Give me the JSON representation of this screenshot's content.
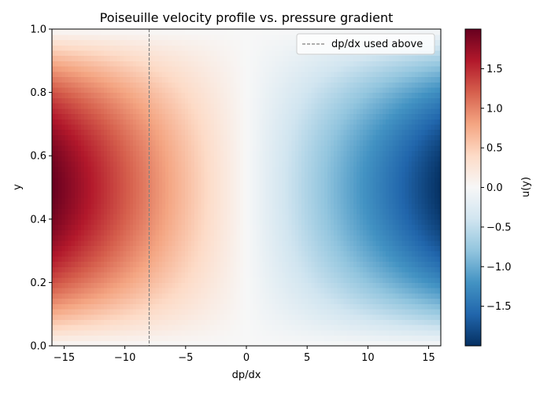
{
  "chart_data": {
    "type": "heatmap",
    "title": "Poiseuille velocity profile vs. pressure gradient",
    "xlabel": "dp/dx",
    "ylabel": "y",
    "colorbar_label": "u(y)",
    "xlim": [
      -16,
      16
    ],
    "ylim": [
      0,
      1
    ],
    "value_range": [
      -2.0,
      2.0
    ],
    "colormap": "RdBu",
    "x_ticks": [
      -15,
      -10,
      -5,
      0,
      5,
      10,
      15
    ],
    "x_tick_labels": [
      "−15",
      "−10",
      "−5",
      "0",
      "5",
      "10",
      "15"
    ],
    "y_ticks": [
      0.0,
      0.2,
      0.4,
      0.6,
      0.8,
      1.0
    ],
    "y_tick_labels": [
      "0.0",
      "0.2",
      "0.4",
      "0.6",
      "0.8",
      "1.0"
    ],
    "colorbar_ticks": [
      1.5,
      1.0,
      0.5,
      0.0,
      -0.5,
      -1.0,
      -1.5
    ],
    "colorbar_tick_labels": [
      "1.5",
      "1.0",
      "0.5",
      "0.0",
      "−0.5",
      "−1.0",
      "−1.5"
    ],
    "field_formula": "u(y) = -(dp/dx) * y * (1 - y) / 2",
    "reference_line": {
      "x": -8,
      "label": "dp/dx used above",
      "style": "dashed",
      "color": "#808080"
    },
    "legend": {
      "position": "top-right",
      "entries": [
        "dp/dx used above"
      ]
    },
    "colors": {
      "low": "#053061",
      "mid": "#f7f7f7",
      "high": "#67001f"
    }
  }
}
